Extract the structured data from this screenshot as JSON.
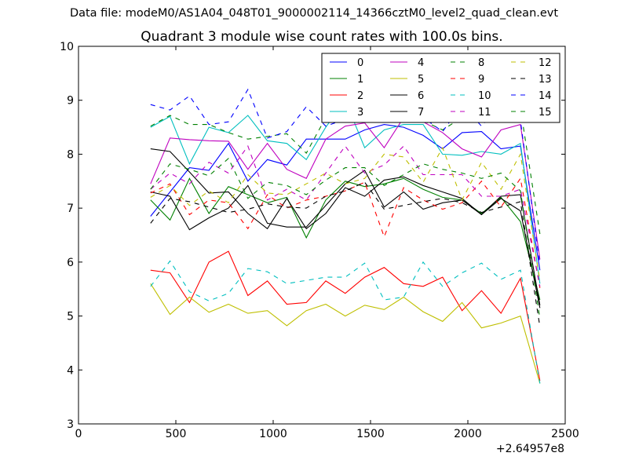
{
  "supertitle": "Data file: modeM0/AS1A04_048T01_9000002114_14366cztM0_level2_quad_clean.evt",
  "chart_data": {
    "type": "line",
    "title": "Quadrant 3 module wise count rates with 100.0s bins.",
    "xlabel": "",
    "ylabel": "",
    "x_offset_label": "+2.64957e8",
    "xlim": [
      0,
      2500
    ],
    "ylim": [
      3,
      10
    ],
    "xticks": [
      "0",
      "500",
      "1000",
      "1500",
      "2000",
      "2500"
    ],
    "yticks": [
      "3",
      "4",
      "5",
      "6",
      "7",
      "8",
      "9",
      "10"
    ],
    "grid": false,
    "legend": {
      "placement": "top-right",
      "columns": 4
    },
    "x": [
      370,
      470,
      570,
      670,
      770,
      870,
      970,
      1070,
      1170,
      1270,
      1370,
      1470,
      1570,
      1670,
      1770,
      1870,
      1970,
      2070,
      2170,
      2270,
      2370
    ],
    "series": [
      {
        "name": "0",
        "color": "#0000ff",
        "dash": "solid",
        "values": [
          6.85,
          7.3,
          7.75,
          7.7,
          8.2,
          7.5,
          7.9,
          7.8,
          8.28,
          8.28,
          8.28,
          8.45,
          8.55,
          8.5,
          8.35,
          8.1,
          8.4,
          8.42,
          8.1,
          8.15,
          5.85
        ]
      },
      {
        "name": "1",
        "color": "#008000",
        "dash": "solid",
        "values": [
          7.15,
          6.78,
          7.55,
          6.9,
          7.4,
          7.25,
          7.1,
          7.2,
          6.45,
          7.15,
          7.5,
          7.4,
          7.45,
          7.55,
          7.35,
          7.2,
          7.15,
          6.9,
          7.2,
          6.75,
          5.3
        ]
      },
      {
        "name": "2",
        "color": "#ff0000",
        "dash": "solid",
        "values": [
          5.85,
          5.8,
          5.25,
          6.0,
          6.2,
          5.38,
          5.65,
          5.22,
          5.25,
          5.65,
          5.42,
          5.72,
          5.9,
          5.6,
          5.55,
          5.72,
          5.1,
          5.47,
          5.05,
          5.7,
          3.8
        ]
      },
      {
        "name": "3",
        "color": "#00bfbf",
        "dash": "solid",
        "values": [
          8.5,
          8.7,
          7.82,
          8.5,
          8.4,
          8.72,
          8.25,
          8.2,
          7.9,
          8.5,
          9.0,
          8.12,
          8.45,
          8.55,
          8.55,
          8.0,
          7.98,
          8.05,
          8.0,
          8.2,
          5.6
        ]
      },
      {
        "name": "4",
        "color": "#bf00bf",
        "dash": "solid",
        "values": [
          7.45,
          8.3,
          8.27,
          8.25,
          8.24,
          7.72,
          8.2,
          7.72,
          7.55,
          8.28,
          8.52,
          8.58,
          8.12,
          8.68,
          8.6,
          8.4,
          8.1,
          7.95,
          8.45,
          8.55,
          6.05
        ]
      },
      {
        "name": "5",
        "color": "#bfbf00",
        "dash": "solid",
        "values": [
          5.6,
          5.03,
          5.35,
          5.07,
          5.22,
          5.05,
          5.1,
          4.82,
          5.1,
          5.22,
          5.0,
          5.2,
          5.12,
          5.35,
          5.08,
          4.9,
          5.25,
          4.78,
          4.87,
          5.0,
          3.75
        ]
      },
      {
        "name": "6",
        "color": "#000000",
        "dash": "solid",
        "values": [
          7.3,
          7.22,
          6.6,
          6.82,
          7.0,
          7.42,
          6.72,
          6.65,
          6.65,
          7.05,
          7.45,
          7.7,
          7.02,
          7.3,
          6.98,
          7.1,
          7.15,
          6.88,
          7.22,
          7.25,
          5.2
        ]
      },
      {
        "name": "7",
        "color": "#000000",
        "dash": "solid",
        "values": [
          8.1,
          8.05,
          7.67,
          7.28,
          7.3,
          6.9,
          6.62,
          7.18,
          6.62,
          6.9,
          7.38,
          7.22,
          7.52,
          7.58,
          7.42,
          7.3,
          7.18,
          6.88,
          7.18,
          6.95,
          5.15
        ]
      },
      {
        "name": "8",
        "color": "#008000",
        "dash": "dashed",
        "values": [
          8.52,
          8.72,
          8.55,
          8.55,
          8.4,
          8.28,
          8.33,
          8.38,
          8.02,
          8.68,
          8.73,
          8.68,
          8.73,
          8.65,
          8.62,
          8.45,
          8.68,
          8.72,
          8.78,
          8.85,
          6.52
        ]
      },
      {
        "name": "9",
        "color": "#ff0000",
        "dash": "dashed",
        "values": [
          7.28,
          7.45,
          6.88,
          7.15,
          7.1,
          6.62,
          7.25,
          7.0,
          7.15,
          7.22,
          7.32,
          7.48,
          6.47,
          7.38,
          7.15,
          6.98,
          7.1,
          7.5,
          7.02,
          7.55,
          5.52
        ]
      },
      {
        "name": "10",
        "color": "#00bfbf",
        "dash": "dashed",
        "values": [
          5.55,
          6.02,
          5.45,
          5.28,
          5.42,
          5.88,
          5.82,
          5.6,
          5.66,
          5.72,
          5.72,
          5.98,
          5.3,
          5.35,
          6.0,
          5.55,
          5.8,
          5.98,
          5.68,
          5.85,
          3.75
        ]
      },
      {
        "name": "11",
        "color": "#bf00bf",
        "dash": "dashed",
        "values": [
          7.35,
          7.65,
          7.45,
          7.85,
          7.65,
          8.15,
          7.15,
          7.35,
          7.15,
          7.65,
          8.15,
          7.65,
          7.8,
          8.15,
          7.62,
          7.62,
          7.62,
          7.22,
          7.22,
          7.35,
          5.55
        ]
      },
      {
        "name": "12",
        "color": "#bfbf00",
        "dash": "dashed",
        "values": [
          7.2,
          7.42,
          7.05,
          7.32,
          7.1,
          7.62,
          7.28,
          7.25,
          7.45,
          7.65,
          7.45,
          7.55,
          8.0,
          7.95,
          7.48,
          8.12,
          7.15,
          7.85,
          7.35,
          8.0,
          5.65
        ]
      },
      {
        "name": "13",
        "color": "#000000",
        "dash": "dashed",
        "values": [
          6.72,
          7.18,
          7.12,
          7.02,
          6.92,
          6.98,
          7.08,
          7.02,
          7.0,
          7.22,
          7.32,
          7.48,
          6.98,
          7.05,
          7.12,
          7.18,
          7.1,
          6.92,
          7.02,
          7.12,
          4.8
        ]
      },
      {
        "name": "14",
        "color": "#0000ff",
        "dash": "dashed",
        "values": [
          8.92,
          8.82,
          9.08,
          8.55,
          8.6,
          9.2,
          8.3,
          8.42,
          8.88,
          8.52,
          8.65,
          8.68,
          8.82,
          8.62,
          8.68,
          8.42,
          8.92,
          8.52,
          8.95,
          8.62,
          5.95
        ]
      },
      {
        "name": "15",
        "color": "#008000",
        "dash": "dashed",
        "values": [
          7.35,
          7.82,
          7.72,
          7.6,
          7.92,
          7.18,
          7.48,
          7.42,
          7.25,
          7.52,
          7.75,
          7.75,
          7.42,
          7.62,
          7.82,
          7.72,
          7.65,
          7.55,
          7.65,
          7.32,
          4.95
        ]
      }
    ]
  }
}
